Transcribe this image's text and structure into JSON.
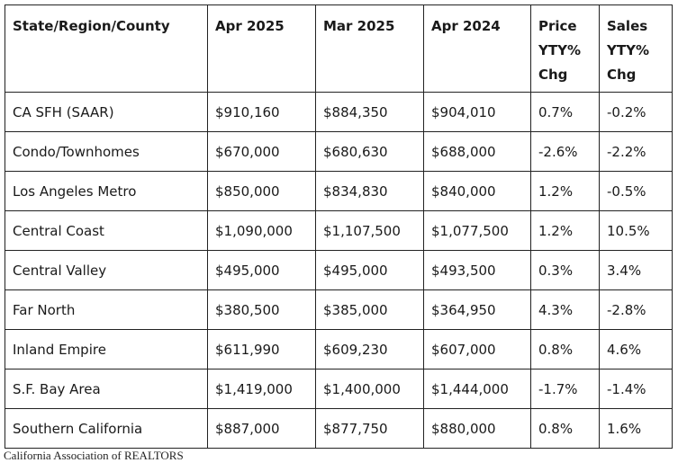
{
  "table": {
    "headers": [
      [
        "State/Region/County"
      ],
      [
        "Apr 2025"
      ],
      [
        "Mar 2025"
      ],
      [
        "Apr 2024"
      ],
      [
        "Price",
        "YTY%",
        "Chg"
      ],
      [
        "Sales",
        "YTY%",
        "Chg"
      ]
    ],
    "rows": [
      [
        "CA SFH (SAAR)",
        "$910,160",
        "$884,350",
        "$904,010",
        "0.7%",
        "-0.2%"
      ],
      [
        "Condo/Townhomes",
        "$670,000",
        "$680,630",
        "$688,000",
        "-2.6%",
        "-2.2%"
      ],
      [
        "Los Angeles Metro",
        "$850,000",
        "$834,830",
        "$840,000",
        "1.2%",
        "-0.5%"
      ],
      [
        "Central Coast",
        "$1,090,000",
        "$1,107,500",
        "$1,077,500",
        "1.2%",
        "10.5%"
      ],
      [
        "Central Valley",
        "$495,000",
        "$495,000",
        "$493,500",
        "0.3%",
        "3.4%"
      ],
      [
        "Far North",
        "$380,500",
        "$385,000",
        "$364,950",
        "4.3%",
        "-2.8%"
      ],
      [
        "Inland Empire",
        "$611,990",
        "$609,230",
        "$607,000",
        "0.8%",
        "4.6%"
      ],
      [
        "S.F. Bay Area",
        "$1,419,000",
        "$1,400,000",
        "$1,444,000",
        "-1.7%",
        "-1.4%"
      ],
      [
        "Southern California",
        "$887,000",
        "$877,750",
        "$880,000",
        "0.8%",
        "1.6%"
      ]
    ]
  },
  "source": "California Association of REALTORS"
}
